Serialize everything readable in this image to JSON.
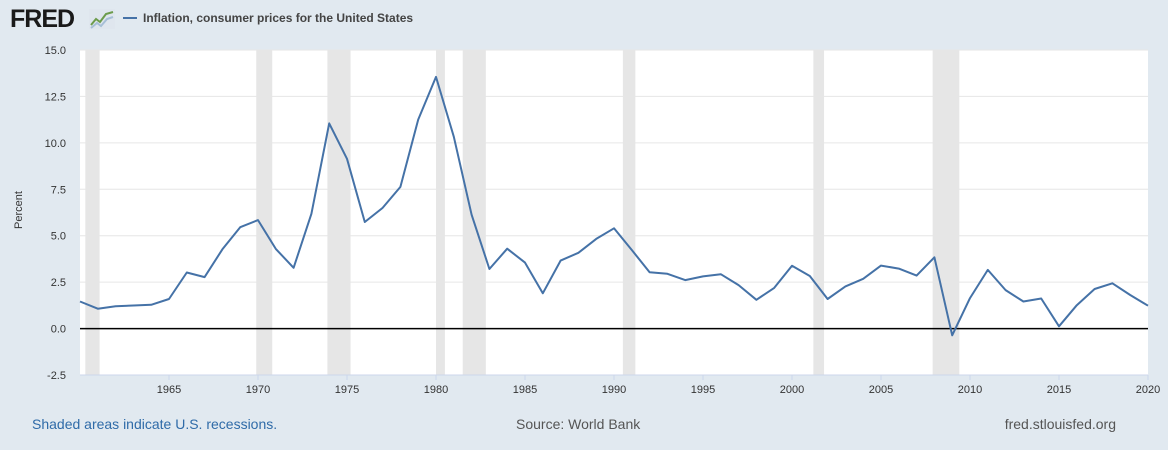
{
  "header": {
    "logo": "FRED",
    "logo_icon": "fred-chart-icon"
  },
  "footer": {
    "recession_note": "Shaded areas indicate U.S. recessions.",
    "source": "Source: World Bank",
    "site": "fred.stlouisfed.org"
  },
  "colors": {
    "line": "#4572a7",
    "recession": "#e6e6e6",
    "background": "#e1e9f0",
    "plot_background": "#ffffff",
    "zero_line": "#000000"
  },
  "chart_data": {
    "type": "line",
    "title": "",
    "xlabel": "",
    "ylabel": "Percent",
    "xlim": [
      1960,
      2020
    ],
    "ylim": [
      -2.5,
      15
    ],
    "yticks": [
      -2.5,
      0,
      2.5,
      5,
      7.5,
      10,
      12.5,
      15
    ],
    "ytick_labels": [
      "-2.5",
      "0.0",
      "2.5",
      "5.0",
      "7.5",
      "10.0",
      "12.5",
      "15.0"
    ],
    "xticks": [
      1965,
      1970,
      1975,
      1980,
      1985,
      1990,
      1995,
      2000,
      2005,
      2010,
      2015,
      2020
    ],
    "xtick_labels": [
      "1965",
      "1970",
      "1975",
      "1980",
      "1985",
      "1990",
      "1995",
      "2000",
      "2005",
      "2010",
      "2015",
      "2020"
    ],
    "grid": "horizontal",
    "legend_position": "top-left",
    "recessions": [
      [
        1960.3,
        1961.1
      ],
      [
        1969.9,
        1970.8
      ],
      [
        1973.9,
        1975.2
      ],
      [
        1980.0,
        1980.5
      ],
      [
        1981.5,
        1982.8
      ],
      [
        1990.5,
        1991.2
      ],
      [
        2001.2,
        2001.8
      ],
      [
        2007.9,
        2009.4
      ]
    ],
    "series": [
      {
        "name": "Inflation, consumer prices for the United States",
        "x": [
          1960,
          1961,
          1962,
          1963,
          1964,
          1965,
          1966,
          1967,
          1968,
          1969,
          1970,
          1971,
          1972,
          1973,
          1974,
          1975,
          1976,
          1977,
          1978,
          1979,
          1980,
          1981,
          1982,
          1983,
          1984,
          1985,
          1986,
          1987,
          1988,
          1989,
          1990,
          1991,
          1992,
          1993,
          1994,
          1995,
          1996,
          1997,
          1998,
          1999,
          2000,
          2001,
          2002,
          2003,
          2004,
          2005,
          2006,
          2007,
          2008,
          2009,
          2010,
          2011,
          2012,
          2013,
          2014,
          2015,
          2016,
          2017,
          2018,
          2019,
          2020
        ],
        "y": [
          1.46,
          1.07,
          1.2,
          1.24,
          1.28,
          1.59,
          3.02,
          2.77,
          4.27,
          5.46,
          5.84,
          4.29,
          3.27,
          6.18,
          11.05,
          9.14,
          5.74,
          6.5,
          7.63,
          11.25,
          13.55,
          10.33,
          6.13,
          3.21,
          4.3,
          3.55,
          1.9,
          3.66,
          4.08,
          4.83,
          5.4,
          4.23,
          3.03,
          2.95,
          2.61,
          2.81,
          2.93,
          2.34,
          1.55,
          2.19,
          3.38,
          2.83,
          1.59,
          2.27,
          2.68,
          3.39,
          3.23,
          2.85,
          3.84,
          -0.36,
          1.64,
          3.16,
          2.07,
          1.46,
          1.62,
          0.12,
          1.26,
          2.13,
          2.44,
          1.81,
          1.23
        ]
      }
    ]
  }
}
